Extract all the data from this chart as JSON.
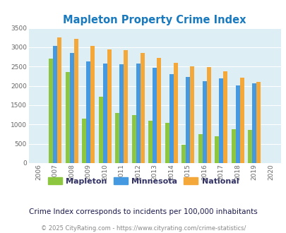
{
  "title": "Mapleton Property Crime Index",
  "years": [
    2006,
    2007,
    2008,
    2009,
    2010,
    2011,
    2012,
    2013,
    2014,
    2015,
    2016,
    2017,
    2018,
    2019,
    2020
  ],
  "mapleton": [
    0,
    2700,
    2350,
    1150,
    1720,
    1300,
    1240,
    1090,
    1050,
    470,
    750,
    700,
    880,
    860,
    0
  ],
  "minnesota": [
    0,
    3040,
    2850,
    2630,
    2570,
    2560,
    2580,
    2460,
    2310,
    2230,
    2130,
    2190,
    2010,
    2070,
    0
  ],
  "national": [
    0,
    3260,
    3210,
    3040,
    2950,
    2920,
    2860,
    2720,
    2600,
    2500,
    2480,
    2370,
    2220,
    2110,
    0
  ],
  "mapleton_color": "#8dc63f",
  "minnesota_color": "#4499e0",
  "national_color": "#f5a83a",
  "background_color": "#ddeef5",
  "ylim": [
    0,
    3500
  ],
  "yticks": [
    0,
    500,
    1000,
    1500,
    2000,
    2500,
    3000,
    3500
  ],
  "subtitle": "Crime Index corresponds to incidents per 100,000 inhabitants",
  "footer": "© 2025 CityRating.com - https://www.cityrating.com/crime-statistics/",
  "legend_labels": [
    "Mapleton",
    "Minnesota",
    "National"
  ],
  "legend_text_color": "#333366",
  "subtitle_color": "#1a1a4e",
  "footer_color": "#888888",
  "title_color": "#1a7abf",
  "bar_width": 0.25
}
